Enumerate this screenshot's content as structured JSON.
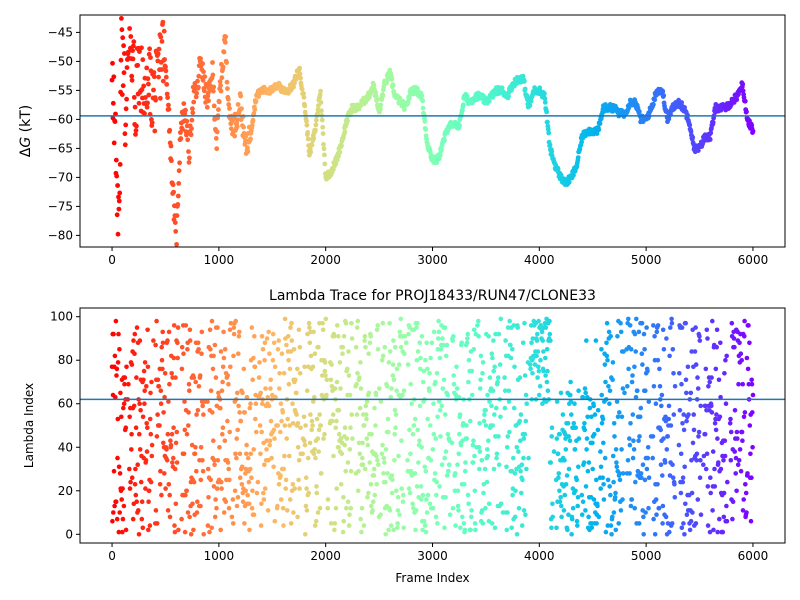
{
  "chart_data": [
    {
      "type": "scatter",
      "title": "",
      "xlabel": "",
      "ylabel": "ΔG (kT)",
      "ylabel_parts": {
        "delta": "Δ",
        "var": "G",
        "unit": " (kT)"
      },
      "xlim": [
        -300,
        6300
      ],
      "ylim": [
        -82,
        -42
      ],
      "xticks": [
        0,
        1000,
        2000,
        3000,
        4000,
        5000,
        6000
      ],
      "xtick_labels": [
        "0",
        "1000",
        "2000",
        "3000",
        "4000",
        "5000",
        "6000"
      ],
      "yticks": [
        -80,
        -75,
        -70,
        -65,
        -60,
        -55,
        -50,
        -45
      ],
      "ytick_labels": [
        "−80",
        "−75",
        "−70",
        "−65",
        "−60",
        "−55",
        "−50",
        "−45"
      ],
      "hline": -59.4,
      "hline_color": "#1f77b4",
      "colormap": "rainbow (reversed: red at frame 0, violet at frame 6000)",
      "grid": false,
      "trace_points": [
        [
          0,
          -50
        ],
        [
          30,
          -64
        ],
        [
          60,
          -80
        ],
        [
          90,
          -47
        ],
        [
          130,
          -60
        ],
        [
          170,
          -43
        ],
        [
          220,
          -56
        ],
        [
          260,
          -49
        ],
        [
          300,
          -59
        ],
        [
          340,
          -54
        ],
        [
          380,
          -56
        ],
        [
          420,
          -55
        ],
        [
          470,
          -47
        ],
        [
          520,
          -55
        ],
        [
          560,
          -69
        ],
        [
          600,
          -82
        ],
        [
          640,
          -62
        ],
        [
          680,
          -58
        ],
        [
          720,
          -66
        ],
        [
          760,
          -56
        ],
        [
          800,
          -55
        ],
        [
          830,
          -49
        ],
        [
          860,
          -54
        ],
        [
          900,
          -57
        ],
        [
          940,
          -52
        ],
        [
          980,
          -64
        ],
        [
          1010,
          -55
        ],
        [
          1060,
          -46
        ],
        [
          1100,
          -60
        ],
        [
          1150,
          -61
        ],
        [
          1200,
          -57
        ],
        [
          1250,
          -65
        ],
        [
          1300,
          -62
        ],
        [
          1350,
          -56
        ],
        [
          1400,
          -55
        ],
        [
          1450,
          -55
        ],
        [
          1500,
          -55
        ],
        [
          1550,
          -54
        ],
        [
          1600,
          -55
        ],
        [
          1650,
          -55
        ],
        [
          1700,
          -54
        ],
        [
          1750,
          -51
        ],
        [
          1800,
          -57
        ],
        [
          1850,
          -66
        ],
        [
          1900,
          -62
        ],
        [
          1950,
          -55
        ],
        [
          2000,
          -70
        ],
        [
          2050,
          -69
        ],
        [
          2100,
          -67
        ],
        [
          2150,
          -64
        ],
        [
          2200,
          -60
        ],
        [
          2250,
          -58
        ],
        [
          2300,
          -58
        ],
        [
          2350,
          -57
        ],
        [
          2400,
          -56
        ],
        [
          2450,
          -54
        ],
        [
          2500,
          -59
        ],
        [
          2550,
          -54
        ],
        [
          2600,
          -52
        ],
        [
          2650,
          -56
        ],
        [
          2700,
          -57
        ],
        [
          2750,
          -58
        ],
        [
          2800,
          -55
        ],
        [
          2850,
          -55
        ],
        [
          2900,
          -56
        ],
        [
          2950,
          -64
        ],
        [
          3000,
          -67
        ],
        [
          3050,
          -67
        ],
        [
          3100,
          -64
        ],
        [
          3150,
          -61
        ],
        [
          3200,
          -61
        ],
        [
          3250,
          -61
        ],
        [
          3300,
          -56
        ],
        [
          3350,
          -57
        ],
        [
          3400,
          -56
        ],
        [
          3450,
          -56
        ],
        [
          3500,
          -57
        ],
        [
          3550,
          -56
        ],
        [
          3600,
          -55
        ],
        [
          3650,
          -55
        ],
        [
          3700,
          -56
        ],
        [
          3750,
          -54
        ],
        [
          3800,
          -53
        ],
        [
          3850,
          -53
        ],
        [
          3900,
          -58
        ],
        [
          3950,
          -55
        ],
        [
          4000,
          -55
        ],
        [
          4050,
          -56
        ],
        [
          4100,
          -65
        ],
        [
          4150,
          -68
        ],
        [
          4200,
          -70
        ],
        [
          4250,
          -71
        ],
        [
          4300,
          -70
        ],
        [
          4350,
          -68
        ],
        [
          4400,
          -63
        ],
        [
          4450,
          -62
        ],
        [
          4500,
          -62
        ],
        [
          4550,
          -62
        ],
        [
          4600,
          -58
        ],
        [
          4650,
          -58
        ],
        [
          4700,
          -58
        ],
        [
          4750,
          -59
        ],
        [
          4800,
          -59
        ],
        [
          4850,
          -57
        ],
        [
          4900,
          -57
        ],
        [
          4950,
          -60
        ],
        [
          5000,
          -60
        ],
        [
          5050,
          -58
        ],
        [
          5100,
          -55
        ],
        [
          5150,
          -55
        ],
        [
          5200,
          -60
        ],
        [
          5250,
          -58
        ],
        [
          5300,
          -57
        ],
        [
          5350,
          -58
        ],
        [
          5400,
          -60
        ],
        [
          5450,
          -65
        ],
        [
          5500,
          -65
        ],
        [
          5550,
          -63
        ],
        [
          5600,
          -63
        ],
        [
          5650,
          -58
        ],
        [
          5700,
          -58
        ],
        [
          5750,
          -58
        ],
        [
          5800,
          -57
        ],
        [
          5850,
          -56
        ],
        [
          5900,
          -54
        ],
        [
          5950,
          -60
        ],
        [
          6000,
          -62
        ]
      ]
    },
    {
      "type": "scatter",
      "title": "Lambda Trace for PROJ18433/RUN47/CLONE33",
      "xlabel": "Frame Index",
      "ylabel": "Lambda Index",
      "xlim": [
        -300,
        6300
      ],
      "ylim": [
        -4,
        104
      ],
      "xticks": [
        0,
        1000,
        2000,
        3000,
        4000,
        5000,
        6000
      ],
      "xtick_labels": [
        "0",
        "1000",
        "2000",
        "3000",
        "4000",
        "5000",
        "6000"
      ],
      "yticks": [
        0,
        20,
        40,
        60,
        80,
        100
      ],
      "ytick_labels": [
        "0",
        "20",
        "40",
        "60",
        "80",
        "100"
      ],
      "hline": 62,
      "hline_color": "#1f77b4",
      "colormap": "rainbow (reversed: red at frame 0, violet at frame 6000)",
      "grid": false,
      "frame_range": [
        0,
        6000
      ],
      "lambda_range": [
        0,
        99
      ]
    }
  ]
}
